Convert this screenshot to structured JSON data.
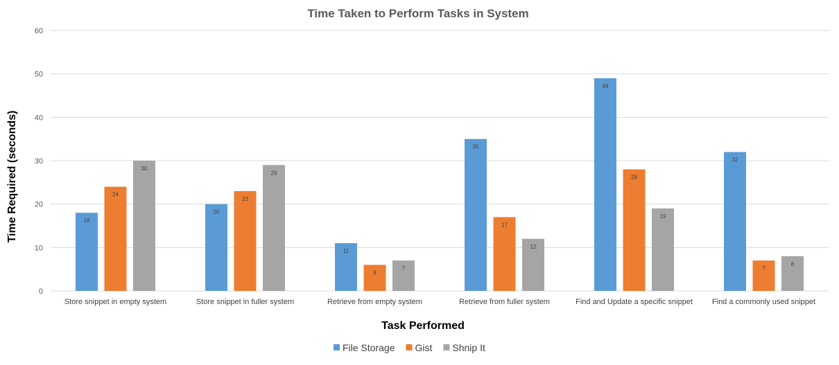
{
  "chart_data": {
    "type": "bar",
    "title": "Time Taken to Perform Tasks in System",
    "xlabel": "Task Performed",
    "ylabel": "Time Required (seconds)",
    "ylim": [
      0,
      60
    ],
    "yticks": [
      0,
      10,
      20,
      30,
      40,
      50,
      60
    ],
    "grid": true,
    "legend_position": "bottom",
    "categories": [
      "Store snippet in empty system",
      "Store snippet in fuller system",
      "Retrieve from empty system",
      "Retrieve from fuller system",
      "Find and Update a specific snippet",
      "Find a commonly used snippet"
    ],
    "series": [
      {
        "name": "File Storage",
        "color": "#5b9bd5",
        "values": [
          18,
          20,
          11,
          35,
          49,
          32
        ]
      },
      {
        "name": "Gist",
        "color": "#ed7d31",
        "values": [
          24,
          23,
          6,
          17,
          28,
          7
        ]
      },
      {
        "name": "Shnip It",
        "color": "#a5a5a5",
        "values": [
          30,
          29,
          7,
          12,
          19,
          8
        ]
      }
    ]
  }
}
